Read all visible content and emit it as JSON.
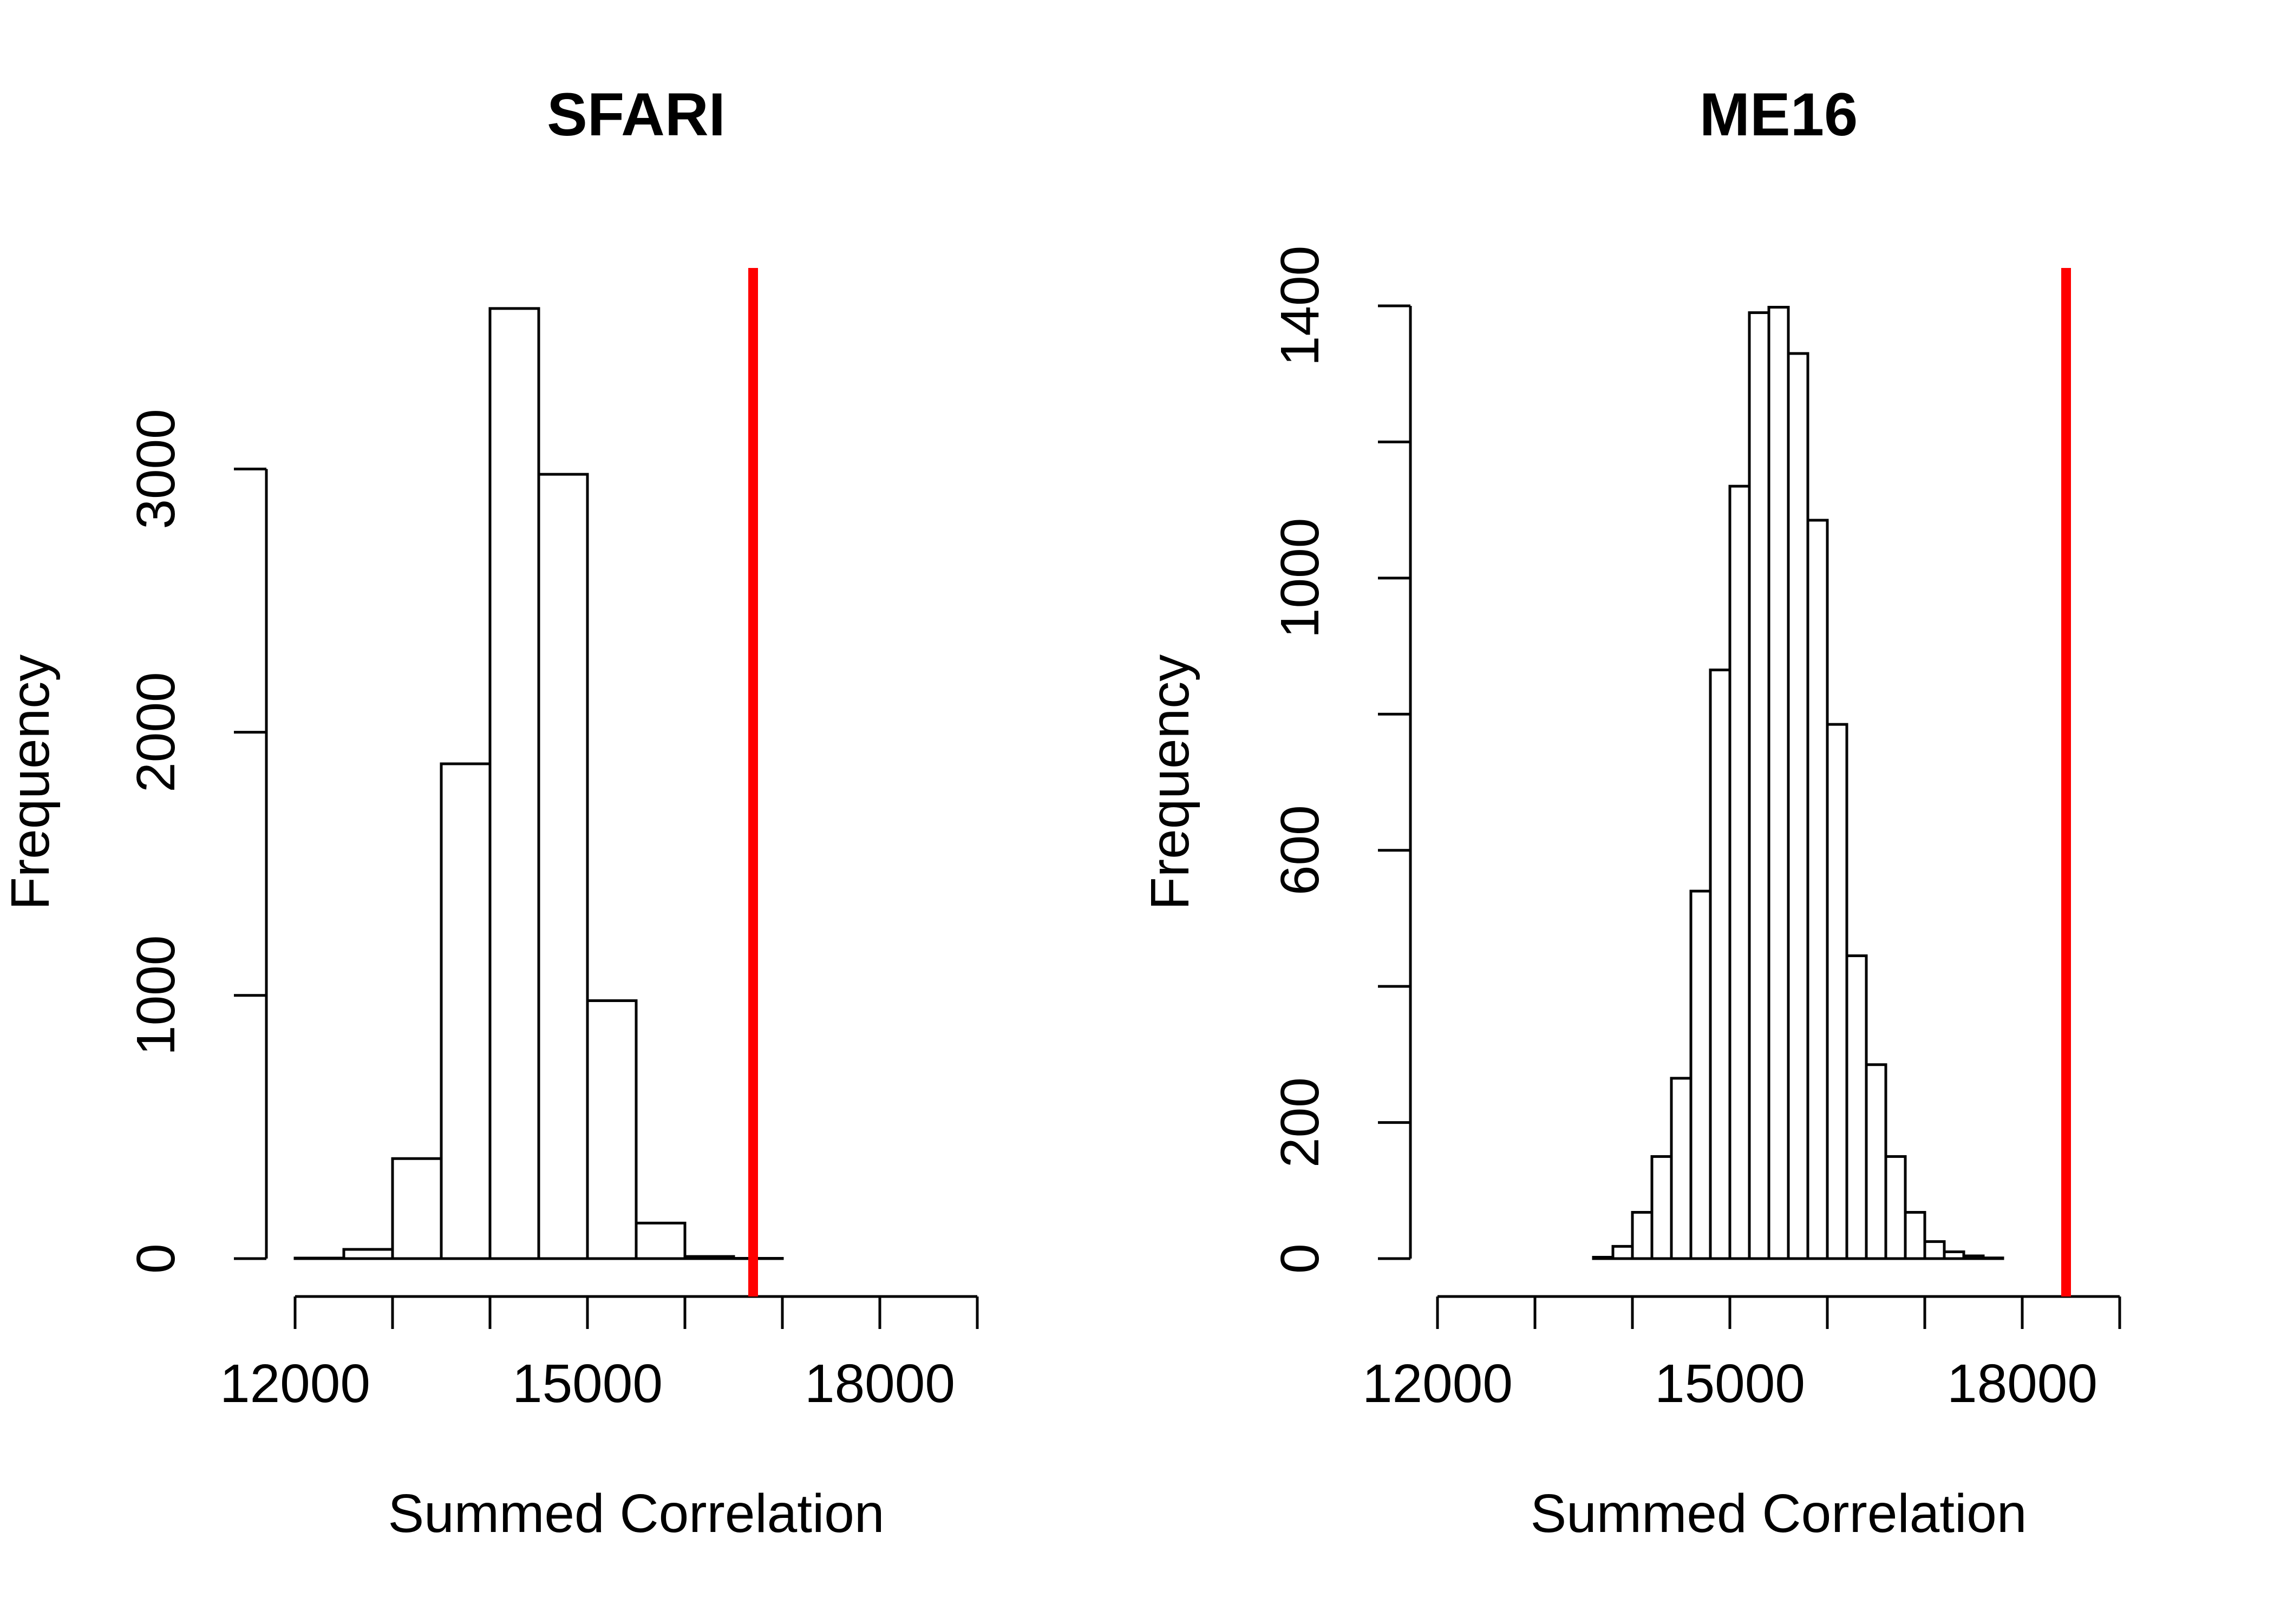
{
  "chart_data": [
    {
      "type": "bar",
      "title": "SFARI",
      "xlabel": "Summed Correlation",
      "ylabel": "Frequency",
      "xlim": [
        12000,
        19000
      ],
      "ylim": [
        0,
        3620
      ],
      "x_ticks": [
        12000,
        13000,
        14000,
        15000,
        16000,
        17000,
        18000,
        19000
      ],
      "x_tick_labels": [
        "12000",
        "15000",
        "18000"
      ],
      "x_tick_label_values": [
        12000,
        15000,
        18000
      ],
      "y_ticks": [
        0,
        1000,
        2000,
        3000
      ],
      "y_tick_labels": [
        "0",
        "1000",
        "2000",
        "3000"
      ],
      "bins": [
        {
          "start": 12000,
          "end": 12500,
          "count": 2
        },
        {
          "start": 12500,
          "end": 13000,
          "count": 35
        },
        {
          "start": 13000,
          "end": 13500,
          "count": 380
        },
        {
          "start": 13500,
          "end": 14000,
          "count": 1880
        },
        {
          "start": 14000,
          "end": 14500,
          "count": 3610
        },
        {
          "start": 14500,
          "end": 15000,
          "count": 2980
        },
        {
          "start": 15000,
          "end": 15500,
          "count": 980
        },
        {
          "start": 15500,
          "end": 16000,
          "count": 135
        },
        {
          "start": 16000,
          "end": 16500,
          "count": 8
        },
        {
          "start": 16500,
          "end": 17000,
          "count": 1
        }
      ],
      "reference_line": {
        "x": 16700,
        "color": "#ff0000"
      },
      "grid": false
    },
    {
      "type": "bar",
      "title": "ME16",
      "xlabel": "Summed Correlation",
      "ylabel": "Frequency",
      "xlim": [
        12000,
        19000
      ],
      "ylim": [
        0,
        1400
      ],
      "x_ticks": [
        12000,
        13000,
        14000,
        15000,
        16000,
        17000,
        18000,
        19000
      ],
      "x_tick_labels": [
        "12000",
        "15000",
        "18000"
      ],
      "x_tick_label_values": [
        12000,
        15000,
        18000
      ],
      "y_ticks": [
        0,
        200,
        400,
        600,
        800,
        1000,
        1200,
        1400
      ],
      "y_tick_labels": [
        "0",
        "200",
        "600",
        "1000",
        "1400"
      ],
      "y_tick_label_values": [
        0,
        200,
        600,
        1000,
        1400
      ],
      "bins": [
        {
          "start": 13600,
          "end": 13800,
          "count": 2
        },
        {
          "start": 13800,
          "end": 14000,
          "count": 18
        },
        {
          "start": 14000,
          "end": 14200,
          "count": 68
        },
        {
          "start": 14200,
          "end": 14400,
          "count": 150
        },
        {
          "start": 14400,
          "end": 14600,
          "count": 265
        },
        {
          "start": 14600,
          "end": 14800,
          "count": 540
        },
        {
          "start": 14800,
          "end": 15000,
          "count": 865
        },
        {
          "start": 15000,
          "end": 15200,
          "count": 1135
        },
        {
          "start": 15200,
          "end": 15400,
          "count": 1390
        },
        {
          "start": 15400,
          "end": 15600,
          "count": 1398
        },
        {
          "start": 15600,
          "end": 15800,
          "count": 1330
        },
        {
          "start": 15800,
          "end": 16000,
          "count": 1085
        },
        {
          "start": 16000,
          "end": 16200,
          "count": 785
        },
        {
          "start": 16200,
          "end": 16400,
          "count": 445
        },
        {
          "start": 16400,
          "end": 16600,
          "count": 285
        },
        {
          "start": 16600,
          "end": 16800,
          "count": 150
        },
        {
          "start": 16800,
          "end": 17000,
          "count": 68
        },
        {
          "start": 17000,
          "end": 17200,
          "count": 25
        },
        {
          "start": 17200,
          "end": 17400,
          "count": 10
        },
        {
          "start": 17400,
          "end": 17600,
          "count": 4
        },
        {
          "start": 17600,
          "end": 17800,
          "count": 1
        }
      ],
      "reference_line": {
        "x": 18450,
        "color": "#ff0000"
      },
      "grid": false
    }
  ]
}
